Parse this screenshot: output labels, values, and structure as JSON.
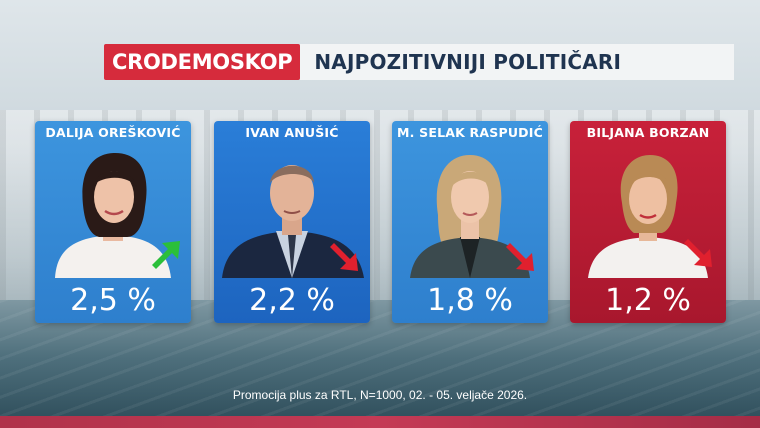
{
  "header": {
    "brand": "CRODEMOSKOP",
    "title": "NAJPOZITIVNIJI POLITIČARI"
  },
  "cards": [
    {
      "name": "DALIJA OREŠKOVIĆ",
      "value": "2,5 %",
      "trend": "up",
      "trend_color": "#2bbf3a"
    },
    {
      "name": "IVAN ANUŠIĆ",
      "value": "2,2 %",
      "trend": "down",
      "trend_color": "#e0202e"
    },
    {
      "name": "M. SELAK RASPUDIĆ",
      "value": "1,8 %",
      "trend": "down",
      "trend_color": "#e0202e"
    },
    {
      "name": "BILJANA BORZAN",
      "value": "1,2 %",
      "trend": "down",
      "trend_color": "#e0202e"
    }
  ],
  "footer": {
    "source": "Promocija plus za RTL, N=1000, 02. - 05. veljače 2026."
  },
  "colors": {
    "brand_red": "#d62b3c",
    "card_blue": "#2e7fcd",
    "card_red": "#c8213a"
  }
}
